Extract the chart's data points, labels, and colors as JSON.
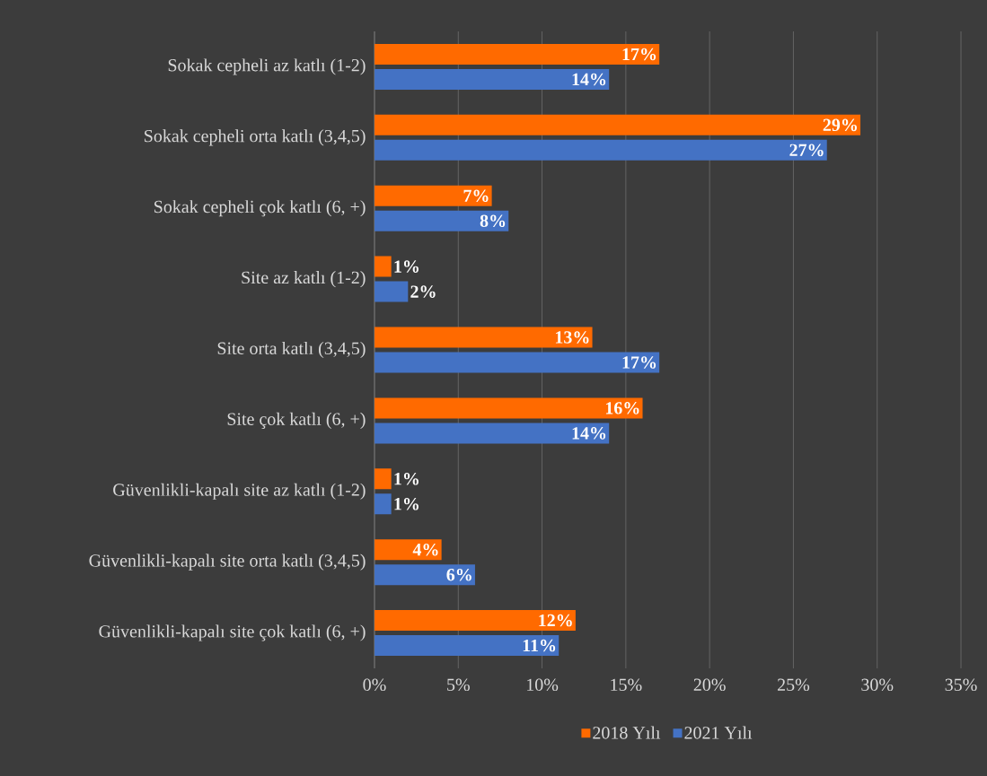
{
  "chart_data": {
    "type": "bar",
    "orientation": "horizontal",
    "categories": [
      "Sokak cepheli az katlı (1-2)",
      "Sokak cepheli orta katlı (3,4,5)",
      "Sokak cepheli çok katlı (6, +)",
      "Site az katlı (1-2)",
      "Site orta katlı (3,4,5)",
      "Site çok katlı (6, +)",
      "Güvenlikli-kapalı site az katlı (1-2)",
      "Güvenlikli-kapalı site orta katlı (3,4,5)",
      "Güvenlikli-kapalı site çok katlı (6, +)"
    ],
    "series": [
      {
        "name": "2018 Yılı",
        "color": "#ff6a00",
        "values": [
          17,
          29,
          7,
          1,
          13,
          16,
          1,
          4,
          12
        ],
        "value_labels": [
          "17%",
          "29%",
          "7%",
          "1%",
          "13%",
          "16%",
          "1%",
          "4%",
          "12%"
        ]
      },
      {
        "name": "2021 Yılı",
        "color": "#4472c4",
        "values": [
          14,
          27,
          8,
          2,
          17,
          14,
          1,
          6,
          11
        ],
        "value_labels": [
          "14%",
          "27%",
          "8%",
          "2%",
          "17%",
          "14%",
          "1%",
          "6%",
          "11%"
        ]
      }
    ],
    "xlim": [
      0,
      35
    ],
    "xticks": [
      {
        "value": 0,
        "label": "0%"
      },
      {
        "value": 5,
        "label": "5%"
      },
      {
        "value": 10,
        "label": "10%"
      },
      {
        "value": 15,
        "label": "15%"
      },
      {
        "value": 20,
        "label": "20%"
      },
      {
        "value": 25,
        "label": "25%"
      },
      {
        "value": 30,
        "label": "30%"
      },
      {
        "value": 35,
        "label": "35%"
      }
    ],
    "grid": "x",
    "legend": "bottom"
  }
}
